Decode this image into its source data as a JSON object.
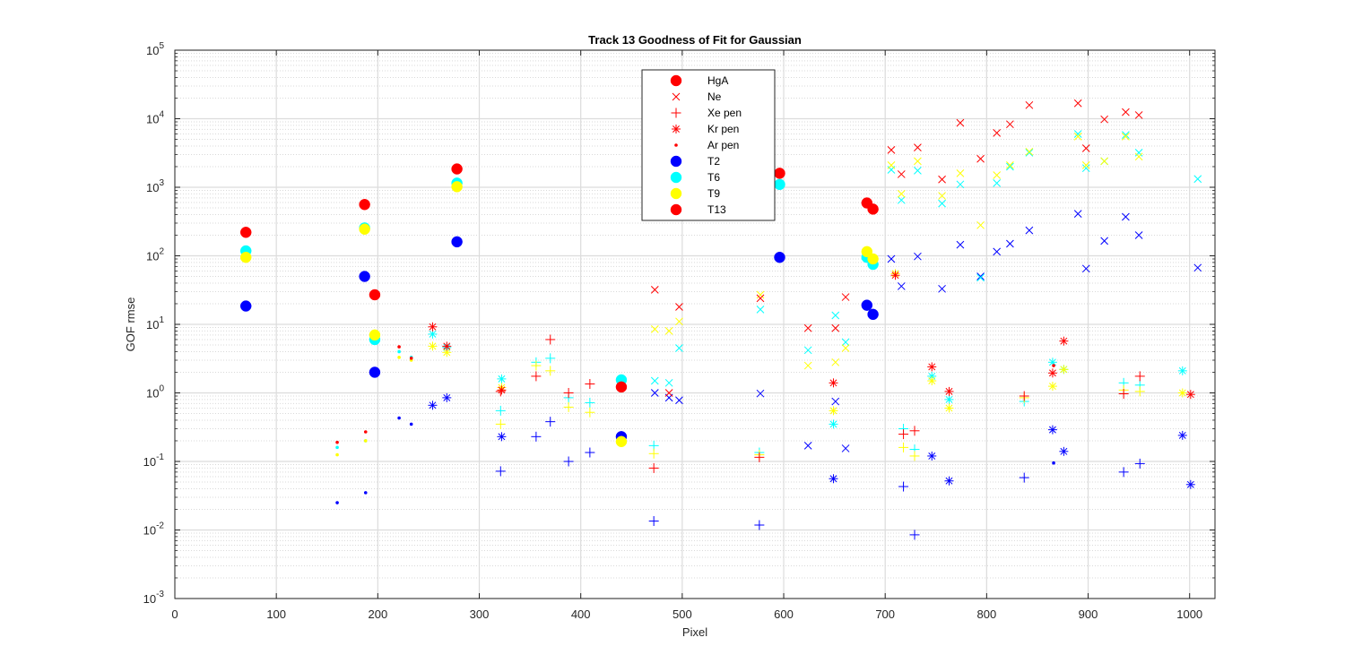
{
  "chart_data": {
    "type": "scatter",
    "title": "Track 13  Goodness of Fit for Gaussian",
    "xlabel": "Pixel",
    "ylabel": "GOF rmse",
    "xlim": [
      0,
      1025
    ],
    "ylim": [
      0.001,
      100000
    ],
    "yscale": "log",
    "grid": true,
    "minor_grid": true,
    "legend_position": "top-center",
    "x_ticks": [
      "0",
      "100",
      "200",
      "300",
      "400",
      "500",
      "600",
      "700",
      "800",
      "900",
      "1000"
    ],
    "y_ticks": [
      {
        "base": "10",
        "exp": "-3",
        "value": 0.001
      },
      {
        "base": "10",
        "exp": "-2",
        "value": 0.01
      },
      {
        "base": "10",
        "exp": "-1",
        "value": 0.1
      },
      {
        "base": "10",
        "exp": "0",
        "value": 1
      },
      {
        "base": "10",
        "exp": "1",
        "value": 10
      },
      {
        "base": "10",
        "exp": "2",
        "value": 100
      },
      {
        "base": "10",
        "exp": "3",
        "value": 1000
      },
      {
        "base": "10",
        "exp": "4",
        "value": 10000
      },
      {
        "base": "10",
        "exp": "5",
        "value": 100000
      }
    ],
    "legend": [
      {
        "name": "HgA",
        "marker": "dot-large",
        "color": "#FF0000"
      },
      {
        "name": "Ne",
        "marker": "x",
        "color": "#FF0000"
      },
      {
        "name": "Xe pen",
        "marker": "plus",
        "color": "#FF0000"
      },
      {
        "name": "Kr pen",
        "marker": "star",
        "color": "#FF0000"
      },
      {
        "name": "Ar pen",
        "marker": "dot-small",
        "color": "#FF0000"
      },
      {
        "name": "T2",
        "marker": "dot-large",
        "color": "#0000FF"
      },
      {
        "name": "T6",
        "marker": "dot-large",
        "color": "#00FFFF"
      },
      {
        "name": "T9",
        "marker": "dot-large",
        "color": "#FFFF00"
      },
      {
        "name": "T13",
        "marker": "dot-large",
        "color": "#FF0000"
      }
    ],
    "series": [
      {
        "group": "HgA",
        "marker": "dot-large",
        "color": "#0000FF",
        "x": [
          70,
          187,
          197,
          278,
          440,
          596,
          682,
          688
        ],
        "y": [
          18.5,
          50,
          2.0,
          160,
          0.23,
          95,
          19,
          14
        ]
      },
      {
        "group": "HgA",
        "marker": "dot-large",
        "color": "#00FFFF",
        "x": [
          70,
          187,
          197,
          278,
          440,
          596,
          682,
          688
        ],
        "y": [
          118,
          255,
          6.0,
          1150,
          1.55,
          1100,
          95,
          75
        ]
      },
      {
        "group": "HgA",
        "marker": "dot-large",
        "color": "#FFFF00",
        "x": [
          70,
          187,
          197,
          278,
          440,
          682,
          688
        ],
        "y": [
          95,
          245,
          7.0,
          1020,
          0.195,
          115,
          90
        ]
      },
      {
        "group": "HgA",
        "marker": "dot-large",
        "color": "#FF0000",
        "x": [
          70,
          187,
          197,
          278,
          440,
          596,
          682,
          688
        ],
        "y": [
          220,
          560,
          27,
          1850,
          1.22,
          1600,
          590,
          480
        ]
      },
      {
        "group": "Ne",
        "marker": "x",
        "color": "#0000FF",
        "x": [
          473,
          487,
          497,
          577,
          624,
          651,
          661,
          706,
          716,
          732,
          756,
          774,
          794,
          810,
          823,
          842,
          890,
          898,
          916,
          937,
          950,
          1008
        ],
        "y": [
          1.0,
          0.85,
          0.78,
          0.98,
          0.17,
          0.75,
          0.155,
          90,
          36,
          98,
          33,
          145,
          50,
          115,
          150,
          235,
          410,
          65,
          165,
          370,
          200,
          67
        ]
      },
      {
        "group": "Ne",
        "marker": "x",
        "color": "#00FFFF",
        "x": [
          473,
          487,
          497,
          577,
          624,
          651,
          661,
          706,
          716,
          732,
          756,
          774,
          794,
          810,
          823,
          842,
          890,
          898,
          916,
          937,
          950,
          1008
        ],
        "y": [
          1.5,
          1.4,
          4.5,
          16.5,
          4.2,
          13.5,
          5.5,
          1800,
          650,
          1750,
          580,
          1100,
          48,
          1150,
          2000,
          3200,
          6000,
          1900,
          2400,
          5800,
          3200,
          1320
        ]
      },
      {
        "group": "Ne",
        "marker": "x",
        "color": "#FFFF00",
        "x": [
          473,
          487,
          497,
          577,
          624,
          651,
          661,
          706,
          716,
          732,
          756,
          774,
          794,
          810,
          823,
          842,
          890,
          898,
          916,
          937,
          950
        ],
        "y": [
          8.5,
          8.0,
          11,
          27,
          2.5,
          2.8,
          4.5,
          2100,
          800,
          2400,
          750,
          1600,
          280,
          1500,
          2100,
          3300,
          5500,
          2100,
          2400,
          5500,
          2800
        ]
      },
      {
        "group": "Ne",
        "marker": "x",
        "color": "#FF0000",
        "x": [
          473,
          487,
          497,
          577,
          624,
          651,
          661,
          706,
          716,
          732,
          756,
          774,
          794,
          810,
          823,
          842,
          890,
          898,
          916,
          937,
          950
        ],
        "y": [
          32,
          1.0,
          18,
          24,
          8.8,
          8.8,
          25,
          3500,
          1550,
          3800,
          1300,
          8700,
          2600,
          6200,
          8300,
          15800,
          16800,
          3700,
          9800,
          12500,
          11300
        ]
      },
      {
        "group": "Xe pen",
        "marker": "plus",
        "color": "#0000FF",
        "x": [
          321,
          356,
          370,
          388,
          409,
          472,
          576,
          718,
          729,
          837,
          935,
          951
        ],
        "y": [
          0.072,
          0.23,
          0.38,
          0.1,
          0.135,
          0.0135,
          0.0118,
          0.043,
          0.0085,
          0.058,
          0.07,
          0.093
        ]
      },
      {
        "group": "Xe pen",
        "marker": "plus",
        "color": "#00FFFF",
        "x": [
          321,
          356,
          370,
          388,
          409,
          472,
          576,
          718,
          729,
          837,
          935,
          951
        ],
        "y": [
          0.55,
          2.8,
          3.2,
          0.85,
          0.72,
          0.17,
          0.135,
          0.3,
          0.15,
          0.75,
          1.4,
          1.3
        ]
      },
      {
        "group": "Xe pen",
        "marker": "plus",
        "color": "#FFFF00",
        "x": [
          321,
          356,
          370,
          388,
          409,
          472,
          576,
          718,
          729,
          837,
          935,
          951
        ],
        "y": [
          0.35,
          2.5,
          2.1,
          0.62,
          0.52,
          0.13,
          0.125,
          0.16,
          0.12,
          0.85,
          1.1,
          1.05
        ]
      },
      {
        "group": "Xe pen",
        "marker": "plus",
        "color": "#FF0000",
        "x": [
          321,
          356,
          370,
          388,
          409,
          472,
          576,
          718,
          729,
          837,
          935,
          951
        ],
        "y": [
          1.05,
          1.75,
          6.0,
          1.0,
          1.35,
          0.08,
          0.115,
          0.25,
          0.28,
          0.9,
          0.97,
          1.75
        ]
      },
      {
        "group": "Kr pen",
        "marker": "star",
        "color": "#0000FF",
        "x": [
          254,
          268,
          322,
          649,
          746,
          763,
          865,
          876,
          993,
          1001
        ],
        "y": [
          0.66,
          0.85,
          0.23,
          0.056,
          0.12,
          0.052,
          0.29,
          0.14,
          0.24,
          0.046
        ]
      },
      {
        "group": "Kr pen",
        "marker": "star",
        "color": "#00FFFF",
        "x": [
          254,
          268,
          322,
          649,
          746,
          763,
          865,
          876,
          993
        ],
        "y": [
          7.2,
          4.6,
          1.6,
          0.35,
          1.75,
          0.8,
          2.8,
          2.2,
          2.1
        ]
      },
      {
        "group": "Kr pen",
        "marker": "star",
        "color": "#FFFF00",
        "x": [
          254,
          268,
          322,
          649,
          710,
          746,
          763,
          865,
          876,
          993
        ],
        "y": [
          4.8,
          3.9,
          1.2,
          0.55,
          55,
          1.5,
          0.6,
          1.25,
          2.2,
          1.0
        ]
      },
      {
        "group": "Kr pen",
        "marker": "star",
        "color": "#FF0000",
        "x": [
          254,
          268,
          322,
          649,
          710,
          746,
          763,
          865,
          876,
          1001
        ],
        "y": [
          9.2,
          4.8,
          1.1,
          1.4,
          52,
          2.4,
          1.05,
          1.95,
          5.7,
          0.95
        ]
      },
      {
        "group": "Ar pen",
        "marker": "dot-small",
        "color": "#0000FF",
        "x": [
          160,
          188,
          221,
          233,
          866
        ],
        "y": [
          0.025,
          0.035,
          0.43,
          0.35,
          0.095
        ]
      },
      {
        "group": "Ar pen",
        "marker": "dot-small",
        "color": "#00FFFF",
        "x": [
          160,
          188,
          221,
          233
        ],
        "y": [
          0.16,
          0.2,
          4.0,
          3.3
        ]
      },
      {
        "group": "Ar pen",
        "marker": "dot-small",
        "color": "#FFFF00",
        "x": [
          160,
          188,
          221,
          233
        ],
        "y": [
          0.125,
          0.2,
          3.3,
          3.0
        ]
      },
      {
        "group": "Ar pen",
        "marker": "dot-small",
        "color": "#FF0000",
        "x": [
          160,
          188,
          221,
          233,
          866
        ],
        "y": [
          0.19,
          0.27,
          4.7,
          3.2,
          2.5
        ]
      }
    ]
  }
}
